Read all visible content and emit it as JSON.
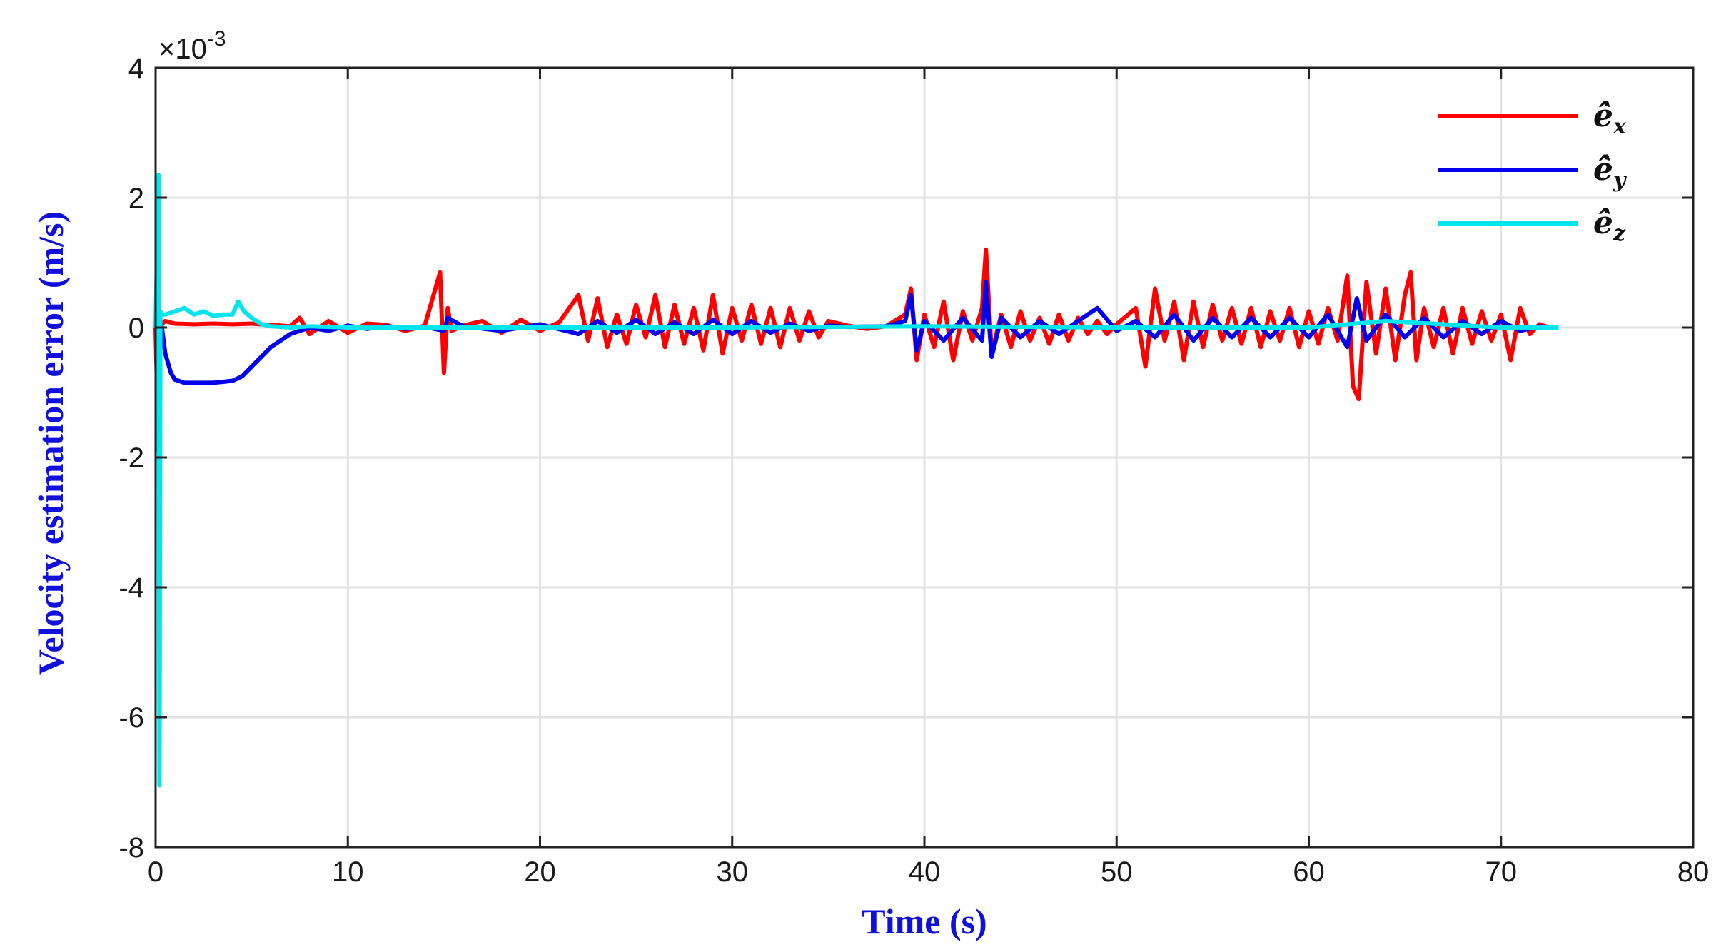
{
  "chart_data": {
    "type": "line",
    "title": "",
    "xlabel": "Time (s)",
    "ylabel": "Velocity estimation error (m/s)",
    "y_scale_factor": "×10",
    "y_scale_exponent": "-3",
    "xlim": [
      0,
      80
    ],
    "ylim": [
      -8,
      4
    ],
    "xticks": [
      0,
      10,
      20,
      30,
      40,
      50,
      60,
      70,
      80
    ],
    "yticks": [
      -8,
      -6,
      -4,
      -2,
      0,
      2,
      4
    ],
    "grid": true,
    "legend_position": "top-right",
    "series": [
      {
        "name": "ê̇",
        "subscript": "x",
        "color": "#ff0000",
        "x": [
          0,
          0.15,
          0.2,
          0.25,
          0.3,
          0.5,
          1,
          2,
          3,
          4,
          5,
          6,
          7,
          7.5,
          8,
          9,
          10,
          11,
          12,
          13,
          14,
          14.8,
          15,
          15.2,
          15.4,
          16,
          17,
          18,
          19,
          20,
          21,
          22,
          22.5,
          23,
          23.5,
          24,
          24.5,
          25,
          25.5,
          26,
          26.5,
          27,
          27.5,
          28,
          28.5,
          29,
          29.5,
          30,
          30.5,
          31,
          31.5,
          32,
          32.5,
          33,
          33.5,
          34,
          34.5,
          35,
          36,
          37,
          38,
          39,
          39.3,
          39.6,
          40,
          40.5,
          41,
          41.5,
          42,
          42.5,
          43,
          43.2,
          43.5,
          44,
          44.5,
          45,
          45.5,
          46,
          46.5,
          47,
          47.5,
          48,
          48.5,
          49,
          49.5,
          50,
          51,
          51.5,
          52,
          52.5,
          53,
          53.5,
          54,
          54.5,
          55,
          55.5,
          56,
          56.5,
          57,
          57.5,
          58,
          58.5,
          59,
          59.5,
          60,
          60.5,
          61,
          61.5,
          62,
          62.3,
          62.6,
          63,
          63.5,
          64,
          64.5,
          65,
          65.3,
          65.6,
          66,
          66.5,
          67,
          67.5,
          68,
          68.5,
          69,
          69.5,
          70,
          70.5,
          71,
          71.5,
          72,
          72.5
        ],
        "y": [
          0,
          -1.9,
          0.1,
          0.05,
          0.05,
          0.1,
          0.06,
          0.05,
          0.06,
          0.05,
          0.06,
          0.04,
          0.02,
          0.15,
          -0.1,
          0.1,
          -0.08,
          0.06,
          0.04,
          -0.05,
          0.03,
          0.85,
          -0.7,
          0.3,
          -0.05,
          0.03,
          0.1,
          -0.08,
          0.12,
          -0.05,
          0.08,
          0.5,
          -0.2,
          0.45,
          -0.3,
          0.2,
          -0.25,
          0.35,
          -0.15,
          0.5,
          -0.3,
          0.35,
          -0.25,
          0.3,
          -0.35,
          0.5,
          -0.4,
          0.3,
          -0.2,
          0.35,
          -0.25,
          0.3,
          -0.3,
          0.3,
          -0.2,
          0.25,
          -0.15,
          0.1,
          0.03,
          -0.02,
          0.02,
          0.2,
          0.6,
          -0.5,
          0.2,
          -0.3,
          0.4,
          -0.5,
          0.25,
          -0.2,
          0.3,
          1.2,
          -0.4,
          0.2,
          -0.3,
          0.25,
          -0.2,
          0.15,
          -0.25,
          0.2,
          -0.2,
          0.15,
          -0.1,
          0.1,
          -0.1,
          0.05,
          0.3,
          -0.6,
          0.6,
          -0.2,
          0.4,
          -0.5,
          0.4,
          -0.3,
          0.35,
          -0.2,
          0.3,
          -0.25,
          0.3,
          -0.3,
          0.25,
          -0.2,
          0.3,
          -0.3,
          0.25,
          -0.25,
          0.3,
          -0.2,
          0.8,
          -0.9,
          -1.1,
          0.7,
          -0.4,
          0.6,
          -0.5,
          0.5,
          0.85,
          -0.5,
          0.3,
          -0.3,
          0.3,
          -0.4,
          0.3,
          -0.25,
          0.25,
          -0.2,
          0.2,
          -0.5,
          0.3,
          -0.1,
          0.05,
          0
        ]
      },
      {
        "name": "ê̇",
        "subscript": "y",
        "color": "#0000ee",
        "x": [
          0,
          0.3,
          0.5,
          0.8,
          1,
          1.5,
          2,
          3,
          4,
          4.5,
          5,
          5.5,
          6,
          6.5,
          7,
          7.5,
          8,
          9,
          10,
          11,
          12,
          13,
          14,
          15,
          15.2,
          16,
          18,
          20,
          22,
          23,
          24,
          25,
          26,
          27,
          28,
          29,
          30,
          31,
          32,
          33,
          34,
          35,
          36,
          38,
          39,
          39.3,
          39.6,
          40,
          41,
          42,
          43,
          43.2,
          43.5,
          44,
          45,
          46,
          47,
          48,
          49,
          50,
          51,
          52,
          53,
          54,
          55,
          56,
          57,
          58,
          59,
          60,
          61,
          62,
          62.5,
          63,
          64,
          65,
          66,
          67,
          68,
          69,
          70,
          71,
          72,
          72.5
        ],
        "y": [
          0.1,
          0.05,
          -0.4,
          -0.7,
          -0.8,
          -0.85,
          -0.85,
          -0.85,
          -0.82,
          -0.75,
          -0.6,
          -0.45,
          -0.3,
          -0.2,
          -0.1,
          -0.05,
          0,
          -0.05,
          0.03,
          -0.02,
          0.02,
          -0.02,
          0.01,
          -0.05,
          0.15,
          0.02,
          -0.05,
          0.05,
          -0.1,
          0.1,
          -0.08,
          0.12,
          -0.1,
          0.08,
          -0.1,
          0.12,
          -0.1,
          0.1,
          -0.08,
          0.06,
          -0.05,
          0.03,
          0.01,
          0.02,
          0.1,
          0.5,
          -0.35,
          0.1,
          -0.2,
          0.15,
          -0.2,
          0.7,
          -0.45,
          0.15,
          -0.15,
          0.1,
          -0.1,
          0.1,
          0.3,
          -0.05,
          0.1,
          -0.15,
          0.2,
          -0.2,
          0.15,
          -0.15,
          0.15,
          -0.15,
          0.15,
          -0.15,
          0.2,
          -0.3,
          0.45,
          -0.2,
          0.2,
          -0.15,
          0.15,
          -0.15,
          0.1,
          -0.1,
          0.1,
          -0.05,
          0.02,
          0
        ]
      },
      {
        "name": "ê̇",
        "subscript": "z",
        "color": "#00e5ee",
        "x": [
          0,
          0.15,
          0.2,
          0.25,
          0.3,
          0.5,
          1,
          1.5,
          2,
          2.5,
          3,
          3.5,
          4,
          4.3,
          4.6,
          5,
          5.5,
          6,
          7,
          8,
          10,
          15,
          20,
          30,
          40,
          50,
          60,
          64,
          70,
          73
        ],
        "y": [
          0,
          2.35,
          -7.05,
          0.25,
          0.2,
          0.2,
          0.25,
          0.3,
          0.2,
          0.25,
          0.18,
          0.2,
          0.2,
          0.4,
          0.25,
          0.15,
          0.05,
          0.02,
          0,
          0.02,
          0,
          0,
          0,
          0,
          0.02,
          0,
          0,
          0.1,
          0,
          0
        ]
      }
    ]
  }
}
